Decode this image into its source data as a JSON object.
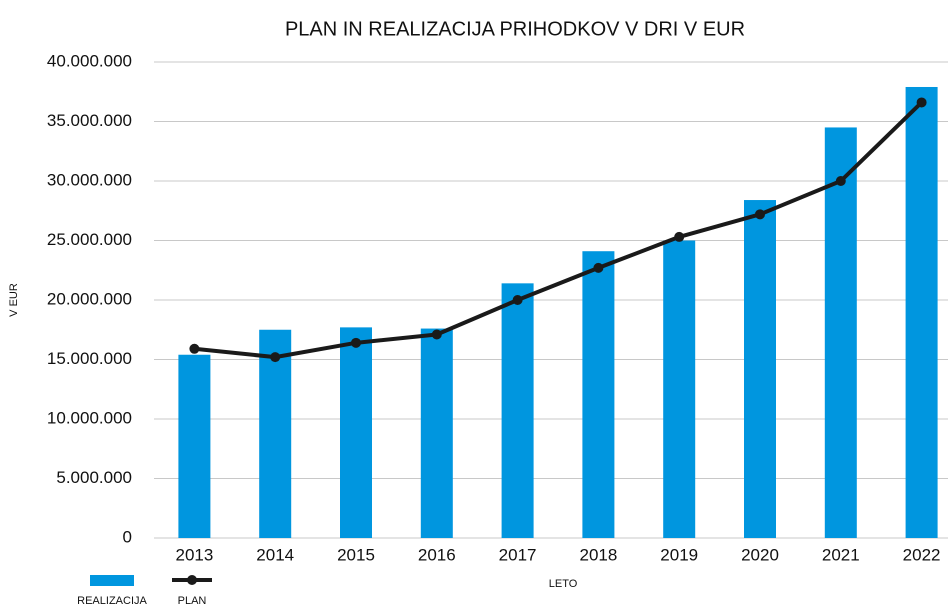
{
  "chart_data": {
    "type": "bar_line",
    "title": "PLAN IN REALIZACIJA PRIHODKOV V DRI V EUR",
    "x_label": "LETO",
    "y_label": "V EUR",
    "categories": [
      "2013",
      "2014",
      "2015",
      "2016",
      "2017",
      "2018",
      "2019",
      "2020",
      "2021",
      "2022"
    ],
    "series": [
      {
        "name": "REALIZACIJA",
        "type": "bar",
        "color": "#0096df",
        "values": [
          15400000,
          17500000,
          17700000,
          17600000,
          21400000,
          24100000,
          25000000,
          28400000,
          34500000,
          37900000
        ]
      },
      {
        "name": "PLAN",
        "type": "line",
        "color": "#1a1a1a",
        "values": [
          15900000,
          15200000,
          16400000,
          17100000,
          20000000,
          22700000,
          25300000,
          27200000,
          30000000,
          36600000
        ]
      }
    ],
    "ylim": [
      0,
      40000000
    ],
    "yticks": [
      0,
      {
        "value": 5000000,
        "label": "5.000.000"
      },
      {
        "value": 10000000,
        "label": "10.000.000"
      },
      {
        "value": 15000000,
        "label": "15.000.000"
      },
      {
        "value": 20000000,
        "label": "20.000.000"
      },
      {
        "value": 25000000,
        "label": "25.000.000"
      },
      {
        "value": 30000000,
        "label": "30.000.000"
      },
      {
        "value": 35000000,
        "label": "35.000.000"
      },
      {
        "value": 40000000,
        "label": "40.000.000"
      }
    ],
    "grid": true
  }
}
